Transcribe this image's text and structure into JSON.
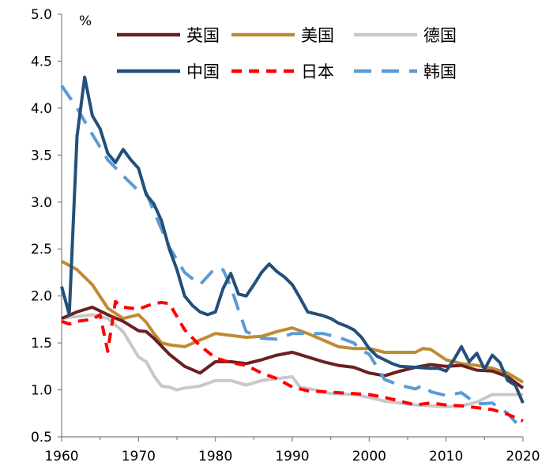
{
  "chart_data": {
    "type": "line",
    "title": "",
    "ylabel": "%",
    "xlabel": "",
    "ylim": [
      0.5,
      5.0
    ],
    "xlim": [
      1960,
      2020
    ],
    "yticks": [
      "0.5",
      "1.0",
      "1.5",
      "2.0",
      "2.5",
      "3.0",
      "3.5",
      "4.0",
      "4.5",
      "5.0"
    ],
    "xticks": [
      "1960",
      "1970",
      "1980",
      "1990",
      "2000",
      "2010",
      "2020"
    ],
    "legend_position": "top-right",
    "series": [
      {
        "name": "英国",
        "color": "#6b1f1f",
        "dash": "solid",
        "points": [
          [
            1960,
            1.76
          ],
          [
            1962,
            1.83
          ],
          [
            1964,
            1.88
          ],
          [
            1966,
            1.8
          ],
          [
            1968,
            1.73
          ],
          [
            1970,
            1.63
          ],
          [
            1971,
            1.62
          ],
          [
            1972,
            1.55
          ],
          [
            1974,
            1.38
          ],
          [
            1976,
            1.25
          ],
          [
            1978,
            1.18
          ],
          [
            1980,
            1.3
          ],
          [
            1982,
            1.3
          ],
          [
            1984,
            1.28
          ],
          [
            1986,
            1.32
          ],
          [
            1988,
            1.37
          ],
          [
            1990,
            1.4
          ],
          [
            1992,
            1.35
          ],
          [
            1994,
            1.3
          ],
          [
            1996,
            1.26
          ],
          [
            1998,
            1.24
          ],
          [
            2000,
            1.18
          ],
          [
            2002,
            1.15
          ],
          [
            2004,
            1.2
          ],
          [
            2006,
            1.24
          ],
          [
            2008,
            1.27
          ],
          [
            2010,
            1.25
          ],
          [
            2012,
            1.26
          ],
          [
            2014,
            1.21
          ],
          [
            2016,
            1.2
          ],
          [
            2018,
            1.14
          ],
          [
            2020,
            1.02
          ]
        ]
      },
      {
        "name": "美国",
        "color": "#c08a33",
        "dash": "solid",
        "points": [
          [
            1960,
            2.37
          ],
          [
            1962,
            2.28
          ],
          [
            1964,
            2.12
          ],
          [
            1966,
            1.87
          ],
          [
            1968,
            1.76
          ],
          [
            1970,
            1.8
          ],
          [
            1971,
            1.72
          ],
          [
            1972,
            1.6
          ],
          [
            1973,
            1.5
          ],
          [
            1974,
            1.48
          ],
          [
            1976,
            1.46
          ],
          [
            1978,
            1.53
          ],
          [
            1980,
            1.6
          ],
          [
            1982,
            1.58
          ],
          [
            1984,
            1.56
          ],
          [
            1986,
            1.57
          ],
          [
            1988,
            1.62
          ],
          [
            1990,
            1.66
          ],
          [
            1992,
            1.6
          ],
          [
            1994,
            1.53
          ],
          [
            1996,
            1.46
          ],
          [
            1998,
            1.44
          ],
          [
            2000,
            1.44
          ],
          [
            2002,
            1.4
          ],
          [
            2004,
            1.4
          ],
          [
            2006,
            1.4
          ],
          [
            2007,
            1.44
          ],
          [
            2008,
            1.43
          ],
          [
            2010,
            1.32
          ],
          [
            2012,
            1.28
          ],
          [
            2014,
            1.26
          ],
          [
            2016,
            1.23
          ],
          [
            2018,
            1.18
          ],
          [
            2020,
            1.08
          ]
        ]
      },
      {
        "name": "德国",
        "color": "#c8c8c8",
        "dash": "solid",
        "points": [
          [
            1960,
            1.76
          ],
          [
            1962,
            1.78
          ],
          [
            1964,
            1.8
          ],
          [
            1966,
            1.76
          ],
          [
            1968,
            1.62
          ],
          [
            1970,
            1.35
          ],
          [
            1971,
            1.3
          ],
          [
            1972,
            1.15
          ],
          [
            1973,
            1.04
          ],
          [
            1974,
            1.03
          ],
          [
            1975,
            1.0
          ],
          [
            1976,
            1.02
          ],
          [
            1978,
            1.04
          ],
          [
            1980,
            1.1
          ],
          [
            1982,
            1.1
          ],
          [
            1984,
            1.05
          ],
          [
            1986,
            1.1
          ],
          [
            1988,
            1.12
          ],
          [
            1990,
            1.14
          ],
          [
            1991,
            1.03
          ],
          [
            1993,
            1.0
          ],
          [
            1995,
            0.96
          ],
          [
            1998,
            0.95
          ],
          [
            2000,
            0.92
          ],
          [
            2002,
            0.88
          ],
          [
            2004,
            0.86
          ],
          [
            2006,
            0.84
          ],
          [
            2008,
            0.83
          ],
          [
            2010,
            0.82
          ],
          [
            2012,
            0.83
          ],
          [
            2014,
            0.87
          ],
          [
            2016,
            0.95
          ],
          [
            2018,
            0.95
          ],
          [
            2020,
            0.95
          ]
        ]
      },
      {
        "name": "中国",
        "color": "#22507a",
        "dash": "solid",
        "points": [
          [
            1960,
            2.1
          ],
          [
            1961,
            1.8
          ],
          [
            1962,
            3.7
          ],
          [
            1963,
            4.33
          ],
          [
            1964,
            3.92
          ],
          [
            1965,
            3.78
          ],
          [
            1966,
            3.52
          ],
          [
            1967,
            3.42
          ],
          [
            1968,
            3.56
          ],
          [
            1969,
            3.45
          ],
          [
            1970,
            3.36
          ],
          [
            1971,
            3.08
          ],
          [
            1972,
            2.98
          ],
          [
            1973,
            2.8
          ],
          [
            1974,
            2.5
          ],
          [
            1975,
            2.28
          ],
          [
            1976,
            2.0
          ],
          [
            1977,
            1.9
          ],
          [
            1978,
            1.83
          ],
          [
            1979,
            1.8
          ],
          [
            1980,
            1.83
          ],
          [
            1981,
            2.08
          ],
          [
            1982,
            2.24
          ],
          [
            1983,
            2.02
          ],
          [
            1984,
            2.0
          ],
          [
            1985,
            2.12
          ],
          [
            1986,
            2.25
          ],
          [
            1987,
            2.34
          ],
          [
            1988,
            2.26
          ],
          [
            1989,
            2.2
          ],
          [
            1990,
            2.12
          ],
          [
            1991,
            1.98
          ],
          [
            1992,
            1.83
          ],
          [
            1994,
            1.79
          ],
          [
            1995,
            1.76
          ],
          [
            1996,
            1.71
          ],
          [
            1997,
            1.68
          ],
          [
            1998,
            1.64
          ],
          [
            1999,
            1.56
          ],
          [
            2000,
            1.44
          ],
          [
            2001,
            1.36
          ],
          [
            2002,
            1.32
          ],
          [
            2003,
            1.28
          ],
          [
            2004,
            1.25
          ],
          [
            2006,
            1.24
          ],
          [
            2008,
            1.23
          ],
          [
            2009,
            1.23
          ],
          [
            2010,
            1.2
          ],
          [
            2011,
            1.32
          ],
          [
            2012,
            1.46
          ],
          [
            2013,
            1.3
          ],
          [
            2014,
            1.39
          ],
          [
            2015,
            1.22
          ],
          [
            2016,
            1.37
          ],
          [
            2017,
            1.29
          ],
          [
            2018,
            1.1
          ],
          [
            2019,
            1.05
          ],
          [
            2020,
            0.86
          ]
        ]
      },
      {
        "name": "日本",
        "color": "#ff0000",
        "dash": "dashed",
        "points": [
          [
            1960,
            1.73
          ],
          [
            1961,
            1.7
          ],
          [
            1962,
            1.73
          ],
          [
            1964,
            1.75
          ],
          [
            1965,
            1.8
          ],
          [
            1966,
            1.41
          ],
          [
            1967,
            1.94
          ],
          [
            1968,
            1.88
          ],
          [
            1970,
            1.86
          ],
          [
            1972,
            1.92
          ],
          [
            1973,
            1.93
          ],
          [
            1974,
            1.92
          ],
          [
            1976,
            1.64
          ],
          [
            1978,
            1.47
          ],
          [
            1980,
            1.34
          ],
          [
            1982,
            1.29
          ],
          [
            1984,
            1.26
          ],
          [
            1986,
            1.18
          ],
          [
            1988,
            1.12
          ],
          [
            1990,
            1.03
          ],
          [
            1992,
            0.99
          ],
          [
            1994,
            0.98
          ],
          [
            1996,
            0.97
          ],
          [
            1998,
            0.96
          ],
          [
            2000,
            0.95
          ],
          [
            2002,
            0.92
          ],
          [
            2004,
            0.88
          ],
          [
            2006,
            0.84
          ],
          [
            2008,
            0.86
          ],
          [
            2010,
            0.84
          ],
          [
            2012,
            0.83
          ],
          [
            2014,
            0.81
          ],
          [
            2016,
            0.79
          ],
          [
            2018,
            0.74
          ],
          [
            2020,
            0.67
          ]
        ]
      },
      {
        "name": "韩国",
        "color": "#5b9bd5",
        "dash": "dashed",
        "points": [
          [
            1960,
            4.24
          ],
          [
            1962,
            4.0
          ],
          [
            1964,
            3.72
          ],
          [
            1966,
            3.45
          ],
          [
            1968,
            3.28
          ],
          [
            1970,
            3.12
          ],
          [
            1971,
            3.1
          ],
          [
            1972,
            2.9
          ],
          [
            1974,
            2.52
          ],
          [
            1976,
            2.25
          ],
          [
            1978,
            2.12
          ],
          [
            1980,
            2.3
          ],
          [
            1981,
            2.28
          ],
          [
            1982,
            2.1
          ],
          [
            1983,
            1.85
          ],
          [
            1984,
            1.62
          ],
          [
            1986,
            1.55
          ],
          [
            1988,
            1.54
          ],
          [
            1990,
            1.6
          ],
          [
            1992,
            1.6
          ],
          [
            1994,
            1.6
          ],
          [
            1996,
            1.56
          ],
          [
            1998,
            1.5
          ],
          [
            1999,
            1.42
          ],
          [
            2000,
            1.38
          ],
          [
            2002,
            1.11
          ],
          [
            2004,
            1.05
          ],
          [
            2006,
            1.01
          ],
          [
            2007,
            1.05
          ],
          [
            2008,
            0.98
          ],
          [
            2010,
            0.94
          ],
          [
            2012,
            0.97
          ],
          [
            2014,
            0.85
          ],
          [
            2016,
            0.86
          ],
          [
            2018,
            0.75
          ],
          [
            2019,
            0.66
          ],
          [
            2020,
            0.57
          ]
        ]
      }
    ]
  }
}
